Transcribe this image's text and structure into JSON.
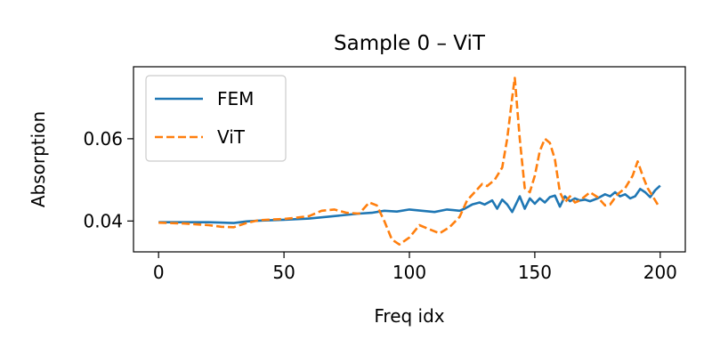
{
  "chart_data": {
    "type": "line",
    "title": "Sample 0 – ViT",
    "xlabel": "Freq idx",
    "ylabel": "Absorption",
    "xlim": [
      -10,
      210
    ],
    "ylim": [
      0.0325,
      0.0775
    ],
    "xticks": [
      0,
      50,
      100,
      150,
      200
    ],
    "xtick_labels": [
      "0",
      "50",
      "100",
      "150",
      "200"
    ],
    "yticks": [
      0.04,
      0.06
    ],
    "ytick_labels": [
      "0.04",
      "0.06"
    ],
    "grid": false,
    "legend": "upper-left",
    "series": [
      {
        "name": "FEM",
        "color": "#1f77b4",
        "style": "solid",
        "points": [
          [
            0,
            0.0397
          ],
          [
            10,
            0.0397
          ],
          [
            20,
            0.0397
          ],
          [
            30,
            0.0395
          ],
          [
            35,
            0.0399
          ],
          [
            40,
            0.0401
          ],
          [
            50,
            0.0403
          ],
          [
            60,
            0.0406
          ],
          [
            70,
            0.0412
          ],
          [
            80,
            0.0418
          ],
          [
            85,
            0.042
          ],
          [
            90,
            0.0425
          ],
          [
            95,
            0.0423
          ],
          [
            100,
            0.0428
          ],
          [
            105,
            0.0425
          ],
          [
            110,
            0.0422
          ],
          [
            115,
            0.0428
          ],
          [
            120,
            0.0425
          ],
          [
            122,
            0.043
          ],
          [
            125,
            0.044
          ],
          [
            128,
            0.0445
          ],
          [
            130,
            0.044
          ],
          [
            133,
            0.045
          ],
          [
            135,
            0.043
          ],
          [
            137,
            0.0452
          ],
          [
            139,
            0.044
          ],
          [
            141,
            0.0422
          ],
          [
            144,
            0.046
          ],
          [
            146,
            0.043
          ],
          [
            148,
            0.0455
          ],
          [
            150,
            0.0442
          ],
          [
            152,
            0.0455
          ],
          [
            154,
            0.0445
          ],
          [
            156,
            0.0458
          ],
          [
            158,
            0.0462
          ],
          [
            160,
            0.0435
          ],
          [
            162,
            0.046
          ],
          [
            164,
            0.0448
          ],
          [
            166,
            0.0455
          ],
          [
            168,
            0.045
          ],
          [
            170,
            0.0452
          ],
          [
            172,
            0.0448
          ],
          [
            175,
            0.0455
          ],
          [
            178,
            0.0465
          ],
          [
            180,
            0.046
          ],
          [
            182,
            0.047
          ],
          [
            184,
            0.046
          ],
          [
            186,
            0.0465
          ],
          [
            188,
            0.0455
          ],
          [
            190,
            0.046
          ],
          [
            192,
            0.0478
          ],
          [
            194,
            0.047
          ],
          [
            196,
            0.0458
          ],
          [
            198,
            0.0475
          ],
          [
            200,
            0.0486
          ]
        ]
      },
      {
        "name": "ViT",
        "color": "#ff7f0e",
        "style": "dashed",
        "points": [
          [
            0,
            0.0396
          ],
          [
            10,
            0.0394
          ],
          [
            20,
            0.039
          ],
          [
            25,
            0.0386
          ],
          [
            30,
            0.0385
          ],
          [
            35,
            0.0395
          ],
          [
            40,
            0.0402
          ],
          [
            50,
            0.0405
          ],
          [
            55,
            0.0408
          ],
          [
            60,
            0.0412
          ],
          [
            65,
            0.0425
          ],
          [
            70,
            0.0428
          ],
          [
            75,
            0.042
          ],
          [
            80,
            0.0418
          ],
          [
            84,
            0.0445
          ],
          [
            87,
            0.0438
          ],
          [
            90,
            0.04
          ],
          [
            93,
            0.0355
          ],
          [
            96,
            0.0343
          ],
          [
            100,
            0.036
          ],
          [
            104,
            0.039
          ],
          [
            108,
            0.038
          ],
          [
            112,
            0.037
          ],
          [
            116,
            0.0385
          ],
          [
            120,
            0.041
          ],
          [
            123,
            0.045
          ],
          [
            126,
            0.047
          ],
          [
            129,
            0.049
          ],
          [
            131,
            0.0485
          ],
          [
            134,
            0.05
          ],
          [
            137,
            0.053
          ],
          [
            139,
            0.06
          ],
          [
            141,
            0.07
          ],
          [
            142,
            0.0748
          ],
          [
            144,
            0.06
          ],
          [
            146,
            0.048
          ],
          [
            148,
            0.047
          ],
          [
            150,
            0.051
          ],
          [
            152,
            0.057
          ],
          [
            154,
            0.06
          ],
          [
            156,
            0.059
          ],
          [
            158,
            0.055
          ],
          [
            160,
            0.047
          ],
          [
            162,
            0.0445
          ],
          [
            164,
            0.046
          ],
          [
            166,
            0.0445
          ],
          [
            168,
            0.045
          ],
          [
            170,
            0.046
          ],
          [
            172,
            0.047
          ],
          [
            175,
            0.0458
          ],
          [
            178,
            0.0438
          ],
          [
            180,
            0.044
          ],
          [
            183,
            0.0465
          ],
          [
            186,
            0.048
          ],
          [
            189,
            0.051
          ],
          [
            191,
            0.0545
          ],
          [
            193,
            0.051
          ],
          [
            195,
            0.048
          ],
          [
            197,
            0.046
          ],
          [
            199,
            0.044
          ]
        ]
      }
    ]
  }
}
